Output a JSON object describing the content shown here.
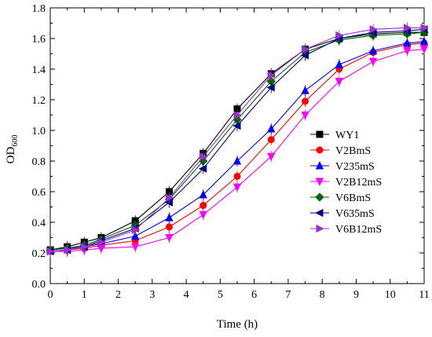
{
  "chart_data": {
    "type": "line",
    "xlabel": "Time (h)",
    "ylabel_main": "OD",
    "ylabel_sub": "600",
    "xlim": [
      0,
      11
    ],
    "ylim": [
      0.0,
      1.8
    ],
    "xticks": [
      "0",
      "1",
      "2",
      "3",
      "4",
      "5",
      "6",
      "7",
      "8",
      "9",
      "10",
      "11"
    ],
    "yticks": [
      "0.0",
      "0.2",
      "0.4",
      "0.6",
      "0.8",
      "1.0",
      "1.2",
      "1.4",
      "1.6",
      "1.8"
    ],
    "x": [
      0,
      0.5,
      1,
      1.5,
      2.5,
      3.5,
      4.5,
      5.5,
      6.5,
      7.5,
      8.5,
      9.5,
      10.5,
      11
    ],
    "legend_position": "right-center",
    "series": [
      {
        "name": "WY1",
        "color": "#000000",
        "marker": "square",
        "values": [
          0.22,
          0.24,
          0.27,
          0.3,
          0.41,
          0.6,
          0.85,
          1.14,
          1.37,
          1.53,
          1.6,
          1.63,
          1.64,
          1.64
        ]
      },
      {
        "name": "V2BmS",
        "color": "#ff0000",
        "marker": "circle",
        "values": [
          0.21,
          0.22,
          0.23,
          0.25,
          0.28,
          0.37,
          0.51,
          0.7,
          0.94,
          1.19,
          1.4,
          1.51,
          1.56,
          1.57
        ]
      },
      {
        "name": "V235mS",
        "color": "#0000ff",
        "marker": "triangle-up",
        "values": [
          0.22,
          0.23,
          0.24,
          0.26,
          0.31,
          0.43,
          0.58,
          0.8,
          1.01,
          1.26,
          1.43,
          1.52,
          1.57,
          1.58
        ]
      },
      {
        "name": "V2B12mS",
        "color": "#ff00ff",
        "marker": "triangle-down",
        "values": [
          0.21,
          0.21,
          0.22,
          0.23,
          0.24,
          0.3,
          0.45,
          0.63,
          0.83,
          1.1,
          1.32,
          1.45,
          1.52,
          1.53
        ]
      },
      {
        "name": "V6BmS",
        "color": "#006400",
        "marker": "diamond",
        "values": [
          0.22,
          0.23,
          0.25,
          0.29,
          0.38,
          0.55,
          0.8,
          1.07,
          1.32,
          1.51,
          1.59,
          1.62,
          1.63,
          1.64
        ]
      },
      {
        "name": "V635mS",
        "color": "#000080",
        "marker": "triangle-left",
        "values": [
          0.21,
          0.22,
          0.24,
          0.28,
          0.36,
          0.53,
          0.75,
          1.03,
          1.28,
          1.49,
          1.6,
          1.64,
          1.65,
          1.66
        ]
      },
      {
        "name": "V6B12mS",
        "color": "#9932cc",
        "marker": "triangle-right",
        "values": [
          0.21,
          0.22,
          0.24,
          0.27,
          0.35,
          0.56,
          0.83,
          1.1,
          1.36,
          1.53,
          1.62,
          1.66,
          1.67,
          1.67
        ]
      }
    ]
  }
}
